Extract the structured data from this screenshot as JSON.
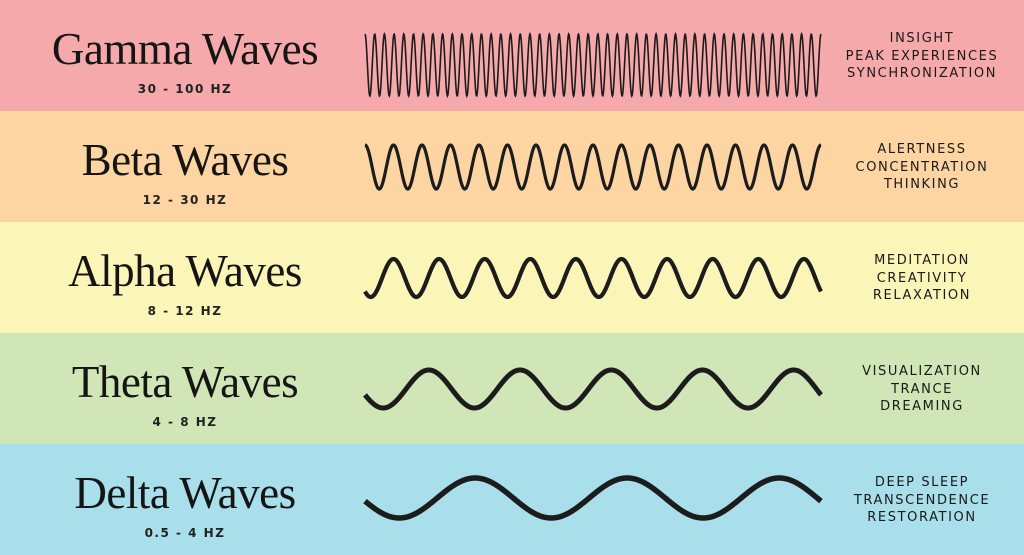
{
  "bands": [
    {
      "name": "Gamma Waves",
      "range": "30 - 100 HZ",
      "effects": [
        "INSIGHT",
        "PEAK EXPERIENCES",
        "SYNCHRONIZATION"
      ],
      "color": "#f5a9ab",
      "wave_cycles": 47
    },
    {
      "name": "Beta Waves",
      "range": "12 - 30 HZ",
      "effects": [
        "ALERTNESS",
        "CONCENTRATION",
        "THINKING"
      ],
      "color": "#fdd5a3",
      "wave_cycles": 16
    },
    {
      "name": "Alpha Waves",
      "range": "8 - 12 HZ",
      "effects": [
        "MEDITATION",
        "CREATIVITY",
        "RELAXATION"
      ],
      "color": "#fbf5b8",
      "wave_cycles": 10
    },
    {
      "name": "Theta Waves",
      "range": "4 - 8 HZ",
      "effects": [
        "VISUALIZATION",
        "TRANCE",
        "DREAMING"
      ],
      "color": "#d0e6b6",
      "wave_cycles": 5
    },
    {
      "name": "Delta Waves",
      "range": "0.5 - 4 HZ",
      "effects": [
        "DEEP SLEEP",
        "TRANSCENDENCE",
        "RESTORATION"
      ],
      "color": "#a8dfeb",
      "wave_cycles": 3
    }
  ],
  "wave_color": "#1c1c1c"
}
